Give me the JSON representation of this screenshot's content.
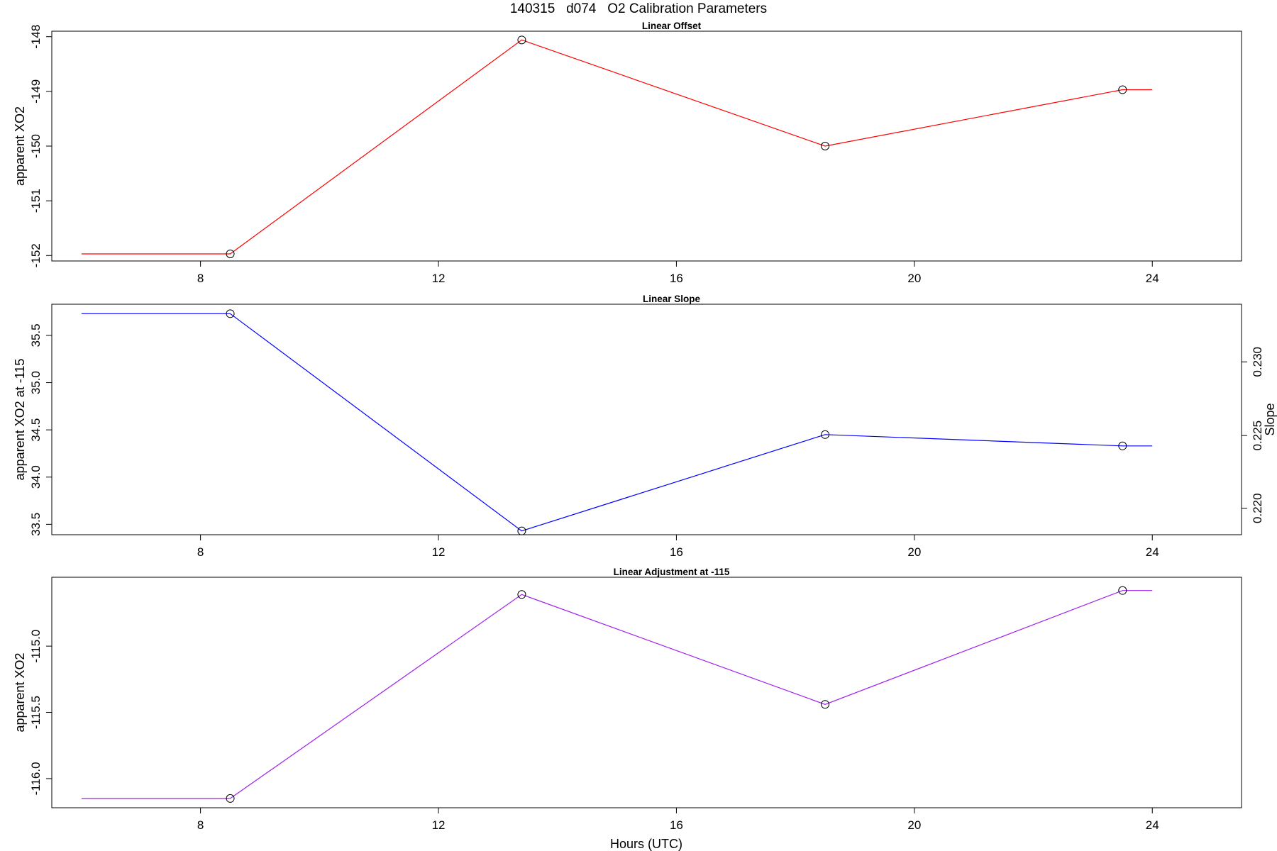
{
  "figure": {
    "title": "140315   d074   O2 Calibration Parameters",
    "xlabel": "Hours (UTC)"
  },
  "chart_data": [
    {
      "type": "line",
      "title": "Linear Offset",
      "xlabel": "",
      "ylabel": "apparent XO2",
      "xlim": [
        5.5,
        25.5
      ],
      "ylim": [
        -152.1,
        -147.9
      ],
      "x_ticks": [
        8,
        12,
        16,
        20,
        24
      ],
      "y_ticks": [
        -152,
        -151,
        -150,
        -149,
        -148
      ],
      "line_color": "#ff0000",
      "line_x": [
        6.0,
        8.5,
        13.4,
        18.5,
        23.5,
        24.0
      ],
      "line_y": [
        -151.97,
        -151.97,
        -148.06,
        -150.0,
        -148.97,
        -148.97
      ],
      "points_x": [
        8.5,
        13.4,
        18.5,
        23.5
      ],
      "points_y": [
        -151.97,
        -148.06,
        -150.0,
        -148.97
      ]
    },
    {
      "type": "line",
      "title": "Linear Slope",
      "xlabel": "",
      "ylabel": "apparent XO2 at -115",
      "ylabel_right": "Slope",
      "xlim": [
        5.5,
        25.5
      ],
      "ylim": [
        33.39,
        35.83
      ],
      "y_ticks": [
        33.5,
        34.0,
        34.5,
        35.0,
        35.5
      ],
      "y_tick_labels": [
        "33.5",
        "34.0",
        "34.5",
        "35.0",
        "35.5"
      ],
      "y_right_ticks": [
        0.22,
        0.225,
        0.23
      ],
      "y_right_tick_labels": [
        "0.220",
        "0.225",
        "0.230"
      ],
      "y_right_ticks_in_left_units": [
        33.67,
        34.44,
        35.22
      ],
      "x_ticks": [
        8,
        12,
        16,
        20,
        24
      ],
      "line_color": "#0000ff",
      "line_x": [
        6.0,
        8.5,
        13.4,
        18.5,
        23.5,
        24.0
      ],
      "line_y": [
        35.73,
        35.73,
        33.43,
        34.45,
        34.33,
        34.33
      ],
      "points_x": [
        8.5,
        13.4,
        18.5,
        23.5
      ],
      "points_y": [
        35.73,
        33.43,
        34.45,
        34.33
      ]
    },
    {
      "type": "line",
      "title": "Linear Adjustment at -115",
      "xlabel": "Hours (UTC)",
      "ylabel": "apparent XO2",
      "xlim": [
        5.5,
        25.5
      ],
      "ylim": [
        -116.22,
        -114.48
      ],
      "y_ticks": [
        -116.0,
        -115.5,
        -115.0
      ],
      "y_tick_labels": [
        "-116.0",
        "-115.5",
        "-115.0"
      ],
      "x_ticks": [
        8,
        12,
        16,
        20,
        24
      ],
      "line_color": "#a020f0",
      "line_x": [
        6.0,
        8.5,
        13.4,
        18.5,
        23.5,
        24.0
      ],
      "line_y": [
        -116.15,
        -116.15,
        -114.61,
        -115.44,
        -114.58,
        -114.58
      ],
      "points_x": [
        8.5,
        13.4,
        18.5,
        23.5
      ],
      "points_y": [
        -116.15,
        -114.61,
        -115.44,
        -114.58
      ]
    }
  ]
}
